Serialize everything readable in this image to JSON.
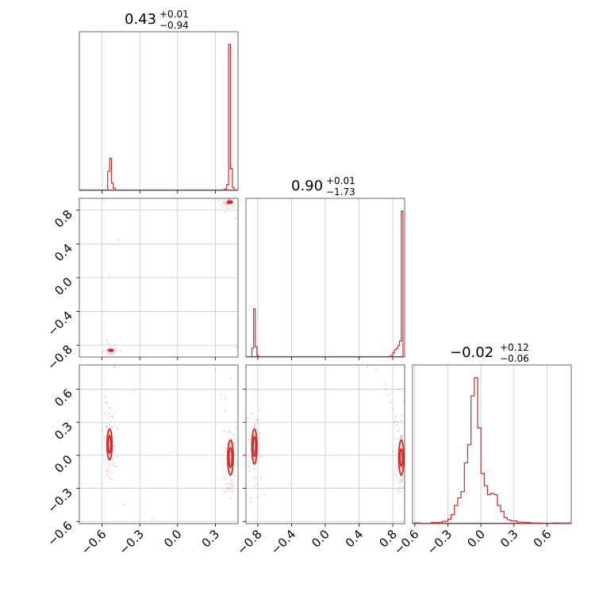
{
  "colors": {
    "series": "#d62728",
    "grid": "#c8c8c8",
    "frame": "#555555"
  },
  "chart_data": {
    "type": "corner",
    "parameters": [
      {
        "title": {
          "value": "0.43",
          "upper": "+0.01",
          "lower": "−0.94"
        },
        "range": [
          -0.78,
          0.48
        ],
        "ticks": [
          -0.6,
          -0.3,
          0.0,
          0.3
        ],
        "tick_labels": [
          "−0.6",
          "−0.3",
          "0.0",
          "0.3"
        ]
      },
      {
        "title": {
          "value": "0.90",
          "upper": "+0.01",
          "lower": "−1.73"
        },
        "range": [
          -0.94,
          0.94
        ],
        "ticks": [
          -0.8,
          -0.4,
          0.0,
          0.4,
          0.8
        ],
        "tick_labels": [
          "−0.8",
          "−0.4",
          "0.0",
          "0.4",
          "0.8"
        ]
      },
      {
        "title": {
          "value": "−0.02",
          "upper": "+0.12",
          "lower": "−0.06"
        },
        "range": [
          -0.62,
          0.82
        ],
        "ticks": [
          -0.6,
          -0.3,
          0.0,
          0.3,
          0.6
        ],
        "tick_labels": [
          "−0.6",
          "−0.3",
          "0.0",
          "0.3",
          "0.6"
        ]
      }
    ],
    "histograms": [
      {
        "param": 0,
        "bins": [
          [
            -0.555,
            -0.54,
            0.13
          ],
          [
            -0.54,
            -0.525,
            0.22
          ],
          [
            -0.525,
            -0.51,
            0.05
          ],
          [
            -0.51,
            -0.495,
            0.015
          ],
          [
            0.36,
            0.375,
            0.005
          ],
          [
            0.375,
            0.39,
            0.01
          ],
          [
            0.39,
            0.405,
            0.04
          ],
          [
            0.405,
            0.42,
            1.0
          ],
          [
            0.42,
            0.435,
            0.15
          ],
          [
            0.435,
            0.45,
            0.02
          ]
        ]
      },
      {
        "param": 1,
        "bins": [
          [
            -0.87,
            -0.85,
            0.06
          ],
          [
            -0.85,
            -0.83,
            0.33
          ],
          [
            -0.83,
            -0.81,
            0.07
          ],
          [
            -0.81,
            -0.79,
            0.01
          ],
          [
            0.76,
            0.78,
            0.005
          ],
          [
            0.78,
            0.8,
            0.01
          ],
          [
            0.8,
            0.82,
            0.03
          ],
          [
            0.82,
            0.84,
            0.05
          ],
          [
            0.84,
            0.86,
            0.06
          ],
          [
            0.86,
            0.88,
            0.08
          ],
          [
            0.88,
            0.9,
            0.11
          ],
          [
            0.9,
            0.92,
            1.0
          ]
        ]
      },
      {
        "param": 2,
        "bins": [
          [
            -0.6,
            -0.55,
            0.005
          ],
          [
            -0.55,
            -0.45,
            0.0
          ],
          [
            -0.45,
            -0.35,
            0.008
          ],
          [
            -0.35,
            -0.3,
            0.015
          ],
          [
            -0.3,
            -0.27,
            0.03
          ],
          [
            -0.27,
            -0.24,
            0.06
          ],
          [
            -0.24,
            -0.21,
            0.12
          ],
          [
            -0.21,
            -0.18,
            0.17
          ],
          [
            -0.18,
            -0.15,
            0.21
          ],
          [
            -0.15,
            -0.12,
            0.4
          ],
          [
            -0.12,
            -0.09,
            0.52
          ],
          [
            -0.09,
            -0.06,
            0.84
          ],
          [
            -0.06,
            -0.03,
            0.96
          ],
          [
            -0.03,
            0.0,
            0.63
          ],
          [
            0.0,
            0.03,
            0.33
          ],
          [
            0.03,
            0.06,
            0.25
          ],
          [
            0.06,
            0.09,
            0.19
          ],
          [
            0.09,
            0.12,
            0.2
          ],
          [
            0.12,
            0.15,
            0.19
          ],
          [
            0.15,
            0.18,
            0.12
          ],
          [
            0.18,
            0.21,
            0.08
          ],
          [
            0.21,
            0.24,
            0.04
          ],
          [
            0.24,
            0.27,
            0.025
          ],
          [
            0.27,
            0.33,
            0.018
          ],
          [
            0.33,
            0.39,
            0.01
          ],
          [
            0.39,
            0.45,
            0.008
          ],
          [
            0.45,
            0.55,
            0.005
          ],
          [
            0.55,
            0.65,
            0.003
          ],
          [
            0.65,
            0.72,
            0.005
          ],
          [
            0.72,
            0.82,
            0.004
          ]
        ]
      }
    ],
    "scatter_panels": [
      {
        "x_param": 0,
        "y_param": 1,
        "clusters": [
          {
            "cx": -0.53,
            "cy": -0.86,
            "sx": 0.012,
            "sy": 0.01,
            "n": 24,
            "contour_widths": [
              [
                0.018,
                0.012
              ],
              [
                0.01,
                0.007
              ]
            ]
          },
          {
            "cx": 0.415,
            "cy": 0.895,
            "sx": 0.012,
            "sy": 0.015,
            "n": 30,
            "contour_widths": [
              [
                0.02,
                0.015
              ],
              [
                0.012,
                0.009
              ]
            ]
          }
        ],
        "points": [
          [
            -0.55,
            -0.78
          ],
          [
            -0.5,
            -0.8
          ],
          [
            -0.47,
            0.45
          ],
          [
            -0.54,
            0.02
          ],
          [
            0.35,
            0.85
          ],
          [
            0.38,
            0.78
          ],
          [
            0.46,
            0.7
          ],
          [
            0.47,
            -0.82
          ],
          [
            -0.6,
            -0.88
          ],
          [
            -0.45,
            -0.86
          ],
          [
            -0.56,
            -0.74
          ],
          [
            0.33,
            0.92
          ],
          [
            0.4,
            0.82
          ],
          [
            -0.52,
            -0.9
          ],
          [
            -0.49,
            -0.87
          ],
          [
            0.44,
            0.86
          ]
        ]
      },
      {
        "x_param": 0,
        "y_param": 2,
        "clusters": [
          {
            "cx": -0.54,
            "cy": 0.1,
            "sx": 0.012,
            "sy": 0.09,
            "n": 50,
            "contour_widths": [
              [
                0.02,
                0.14
              ],
              [
                0.01,
                0.08
              ]
            ]
          },
          {
            "cx": 0.42,
            "cy": -0.02,
            "sx": 0.012,
            "sy": 0.1,
            "n": 60,
            "contour_widths": [
              [
                0.022,
                0.16
              ],
              [
                0.012,
                0.09
              ]
            ]
          }
        ],
        "points": [
          [
            -0.5,
            0.8
          ],
          [
            -0.57,
            0.48
          ],
          [
            -0.52,
            0.35
          ],
          [
            -0.35,
            0.58
          ],
          [
            -0.56,
            -0.18
          ],
          [
            -0.53,
            -0.22
          ],
          [
            -0.6,
            0.22
          ],
          [
            -0.49,
            -0.1
          ],
          [
            0.35,
            0.55
          ],
          [
            0.38,
            0.52
          ],
          [
            0.42,
            0.7
          ],
          [
            0.4,
            -0.32
          ],
          [
            0.44,
            -0.28
          ],
          [
            0.38,
            0.4
          ],
          [
            0.47,
            0.25
          ],
          [
            -0.42,
            -0.45
          ],
          [
            -0.2,
            -0.58
          ],
          [
            0.3,
            0.78
          ],
          [
            -0.58,
            0.38
          ],
          [
            -0.48,
            0.24
          ]
        ]
      },
      {
        "x_param": 1,
        "y_param": 2,
        "clusters": [
          {
            "cx": -0.84,
            "cy": 0.08,
            "sx": 0.02,
            "sy": 0.1,
            "n": 50,
            "contour_widths": [
              [
                0.03,
                0.16
              ],
              [
                0.015,
                0.09
              ]
            ]
          },
          {
            "cx": 0.9,
            "cy": -0.02,
            "sx": 0.015,
            "sy": 0.1,
            "n": 60,
            "contour_widths": [
              [
                0.03,
                0.16
              ],
              [
                0.015,
                0.08
              ]
            ]
          }
        ],
        "points": [
          [
            0.55,
            0.82
          ],
          [
            0.6,
            0.78
          ],
          [
            0.7,
            0.65
          ],
          [
            0.75,
            0.55
          ],
          [
            0.78,
            0.48
          ],
          [
            0.8,
            0.42
          ],
          [
            0.83,
            0.35
          ],
          [
            0.85,
            0.28
          ],
          [
            0.86,
            0.22
          ],
          [
            0.88,
            -0.25
          ],
          [
            0.86,
            -0.32
          ],
          [
            -0.8,
            0.32
          ],
          [
            -0.82,
            -0.2
          ],
          [
            -0.87,
            0.38
          ],
          [
            -0.78,
            0.2
          ],
          [
            0.82,
            0.3
          ],
          [
            0.88,
            0.6
          ],
          [
            -0.84,
            -0.28
          ],
          [
            0.72,
            0.6
          ],
          [
            0.5,
            0.8
          ]
        ]
      }
    ]
  }
}
